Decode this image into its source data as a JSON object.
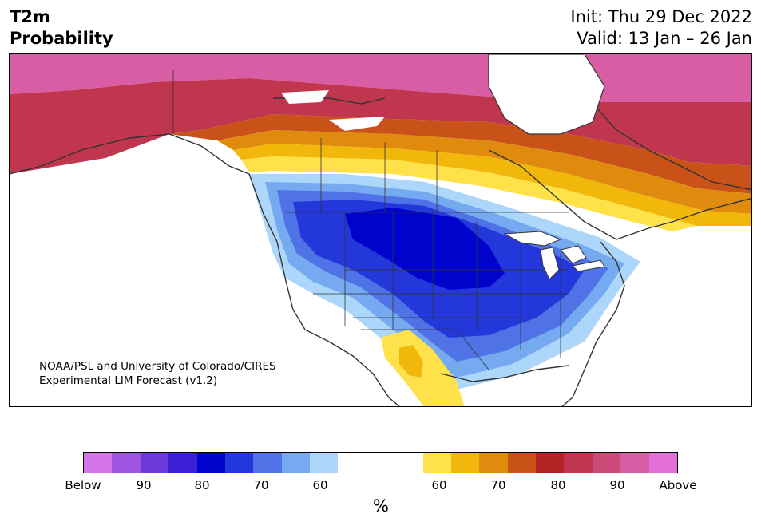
{
  "title": {
    "variable": "T2m",
    "product": "Probability",
    "init": "Init: Thu 29 Dec 2022",
    "valid": "Valid: 13 Jan – 26 Jan"
  },
  "credit": {
    "line1": "NOAA/PSL and University of Colorado/CIRES",
    "line2": "Experimental LIM Forecast (v1.2)"
  },
  "colorbar": {
    "unit": "%",
    "colors": [
      "#d675e8",
      "#9e55e2",
      "#6d39d8",
      "#3a1fd4",
      "#0003cc",
      "#2437db",
      "#4f73e6",
      "#76aaf0",
      "#acd7fa",
      "#ffffff",
      "#ffe14a",
      "#f1b70a",
      "#e08a0e",
      "#c85217",
      "#b32324",
      "#c1364f",
      "#cd4b7a",
      "#d95da5",
      "#e46fd6"
    ],
    "labels": [
      "Below",
      "90",
      "80",
      "70",
      "60",
      "60",
      "70",
      "80",
      "90",
      "Above"
    ]
  },
  "map": {
    "region": "North America",
    "fill_legend": {
      "below": "blue shades over central/western US and Great Plains",
      "above": "red/orange/yellow shades over Alaska, northern Canada and eastern Canada"
    }
  }
}
